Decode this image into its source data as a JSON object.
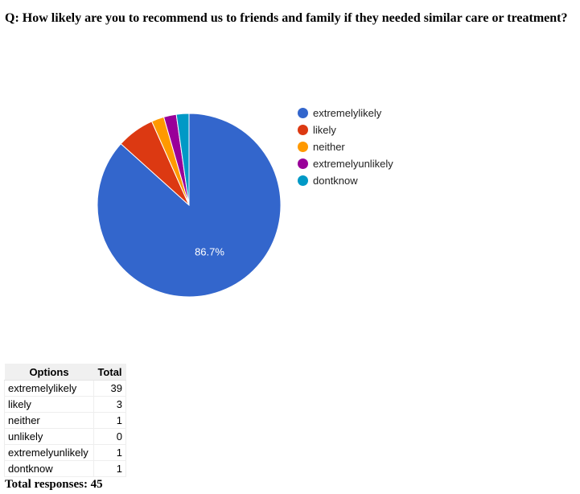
{
  "question": "Q: How likely are you to recommend us to friends and family if they needed similar care or treatment?",
  "chart_data": {
    "type": "pie",
    "categories": [
      "extremelylikely",
      "likely",
      "neither",
      "extremelyunlikely",
      "dontknow"
    ],
    "values": [
      39,
      3,
      1,
      1,
      1
    ],
    "colors": [
      "#3366cc",
      "#dc3912",
      "#ff9900",
      "#990099",
      "#0099c6"
    ],
    "slice_labels": [
      "86.7%",
      "",
      "",
      "",
      ""
    ],
    "legend_position": "right"
  },
  "table": {
    "headers": [
      "Options",
      "Total"
    ],
    "rows": [
      {
        "option": "extremelylikely",
        "total": "39"
      },
      {
        "option": "likely",
        "total": "3"
      },
      {
        "option": "neither",
        "total": "1"
      },
      {
        "option": "unlikely",
        "total": "0"
      },
      {
        "option": "extremelyunlikely",
        "total": "1"
      },
      {
        "option": "dontknow",
        "total": "1"
      }
    ]
  },
  "total_responses": "Total responses: 45"
}
